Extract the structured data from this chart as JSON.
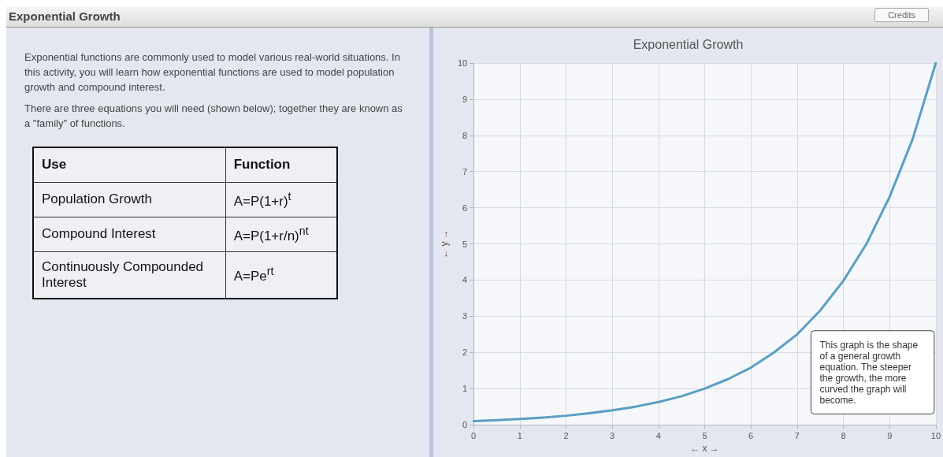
{
  "chart_data": {
    "type": "line",
    "title": "Exponential Growth",
    "xlabel": "← x →",
    "ylabel": "← y →",
    "annotations": [
      "Exponential Growth",
      "Credits",
      "Exponential functions are commonly used to model various real-world situations. In this activity, you will learn how exponential functions are used to model population growth and compound interest.",
      "There are three equations you will need (shown below); together they are known as a \"family\" of functions.",
      "Use",
      "Function",
      "Population Growth",
      "A=P(1+r)$^{t}$",
      "Compound Interest",
      "A=P(1+r/n)$^{nt}$",
      "Continuously Compounded Interest",
      "A=Pe$^{rt}$",
      "This graph is the shape of a general growth equation. The steeper the growth, the more curved the graph will become."
    ],
    "x": [
      0,
      0.5,
      1,
      1.5,
      2,
      2.5,
      3,
      3.5,
      4,
      4.5,
      5,
      5.5,
      6,
      6.5,
      7,
      7.5,
      8,
      8.5,
      9,
      9.5,
      10
    ],
    "series": [
      {
        "color": "#5b9ec3",
        "values": [
          0.1,
          0.13,
          0.16,
          0.2,
          0.25,
          0.32,
          0.4,
          0.5,
          0.63,
          0.79,
          1,
          1.26,
          1.58,
          2,
          2.5,
          3.16,
          3.98,
          5,
          6.3,
          7.9,
          10
        ]
      }
    ],
    "xlim": [
      0,
      10
    ],
    "xticks": [
      0,
      1,
      2,
      3,
      4,
      5,
      6,
      7,
      8,
      9,
      10
    ],
    "ylim": [
      0,
      10
    ],
    "yticks": [
      0,
      1,
      2,
      3,
      4,
      5,
      6,
      7,
      8,
      9,
      10
    ],
    "grid": true,
    "marker": "none",
    "line_style": "solid"
  }
}
